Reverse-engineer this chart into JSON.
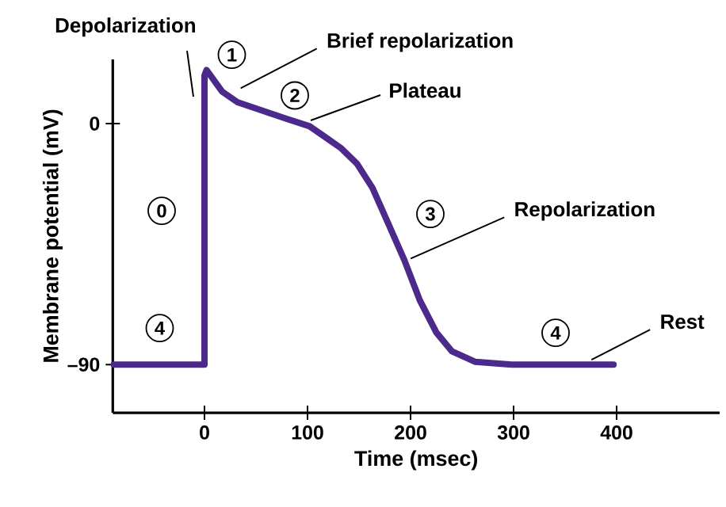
{
  "chart_data": {
    "type": "line",
    "xlabel": "Time (msec)",
    "ylabel": "Membrane potential (mV)",
    "xlim": [
      -89,
      500
    ],
    "ylim": [
      -108,
      24
    ],
    "xticks": [
      0,
      100,
      200,
      300,
      400
    ],
    "yticks": [
      0,
      {
        "value": -90,
        "label": "–90"
      }
    ],
    "grid": false,
    "marker": "none",
    "line_style": "solid",
    "series": [
      {
        "color": "#4b2a8c",
        "x": [
          -88,
          0,
          0,
          2,
          17,
          32,
          55,
          78,
          102,
          117,
          132,
          148,
          163,
          178,
          194,
          209,
          225,
          240,
          263,
          298,
          397
        ],
        "values": [
          -90,
          -90,
          18,
          20,
          12,
          8,
          5,
          2,
          -1,
          -5,
          -9,
          -15,
          -24,
          -37,
          -51,
          -66,
          -78,
          -85,
          -89,
          -90,
          -90
        ]
      }
    ],
    "annotations": [
      {
        "text": "Depolarization",
        "x": 0,
        "y": 10
      },
      {
        "text": "Brief repolarization",
        "x": 29,
        "y": 12
      },
      {
        "text": "Plateau",
        "x": 100,
        "y": 0
      },
      {
        "text": "Repolarization",
        "x": 194,
        "y": -51
      },
      {
        "text": "Rest",
        "x": 374,
        "y": -90
      },
      {
        "text": "0",
        "x": 0,
        "y": -45
      },
      {
        "text": "1",
        "x": 5,
        "y": 18
      },
      {
        "text": "2",
        "x": 60,
        "y": 4
      },
      {
        "text": "3",
        "x": 190,
        "y": -45
      },
      {
        "text": "4",
        "x": -45,
        "y": -90
      },
      {
        "text": "4",
        "x": 350,
        "y": -90
      }
    ]
  }
}
